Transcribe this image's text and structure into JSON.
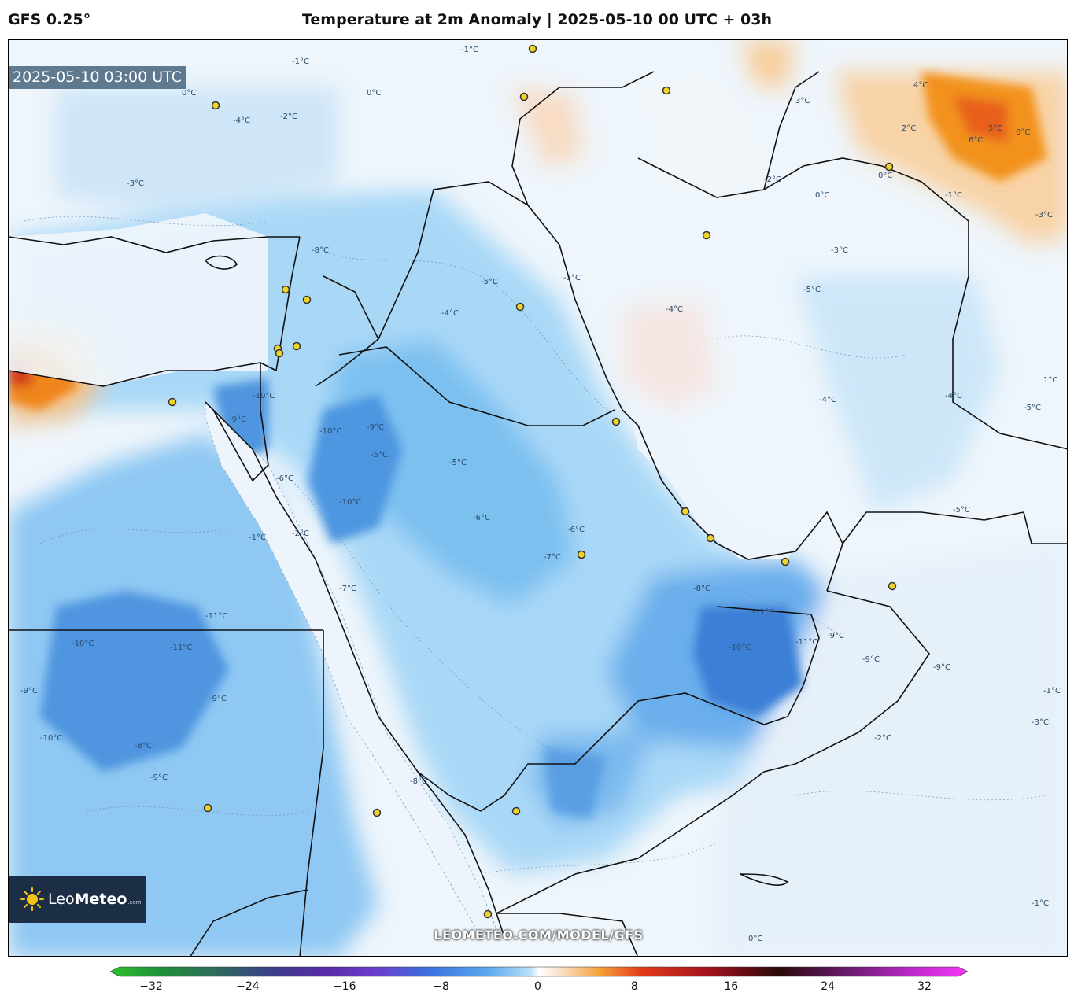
{
  "header": {
    "model": "GFS 0.25°",
    "title": "Temperature at 2m Anomaly | 2025-05-10 00 UTC + 03h"
  },
  "map": {
    "valid_time": "2025-05-10 03:00 UTC",
    "watermark": "LEOMETEO.COM/MODEL/GFS",
    "logo": {
      "brand_light": "Leo",
      "brand_bold": "Meteo",
      "suffix": ".com",
      "icon": "sun-icon"
    },
    "contour_labels": [
      "-1°C",
      "0°C",
      "-4°C",
      "-2°C",
      "-3°C",
      "-8°C",
      "-5°C",
      "-1°C",
      "0°C",
      "-10°C",
      "-9°C",
      "-10°C",
      "-9°C",
      "-5°C",
      "-10°C",
      "-6°C",
      "-6°C",
      "-7°C",
      "-5°C",
      "-4°C",
      "-3°C",
      "-4°C",
      "-5°C",
      "-6°C",
      "-8°C",
      "-11°C",
      "-10°C",
      "-11°C",
      "-9°C",
      "-9°C",
      "-11°C",
      "-10°C",
      "-11°C",
      "-9°C",
      "-8°C",
      "-10°C",
      "-9°C",
      "-8°C",
      "-9°C",
      "-7°C",
      "-2°C",
      "-1°C",
      "0°C",
      "-1°C",
      "0°C",
      "-2°C",
      "2°C",
      "3°C",
      "4°C",
      "5°C",
      "6°C",
      "6°C",
      "-5°C",
      "-4°C",
      "-3°C",
      "1°C",
      "-1°C",
      "-2°C",
      "-3°C",
      "-4°C",
      "-5°C",
      "-9°C",
      "-3°C",
      "-1°C",
      "0°C"
    ],
    "colors": {
      "cold_strong": "#3a7fd6",
      "cold": "#6bb5ee",
      "cool": "#a9d8f7",
      "near_zero": "#eaf3fb",
      "warm": "#f8d3a6",
      "hot": "#f2921e"
    }
  },
  "colorbar": {
    "ticks": [
      "−32",
      "−24",
      "−16",
      "−8",
      "0",
      "8",
      "16",
      "24",
      "32"
    ],
    "range": [
      -32,
      32
    ]
  }
}
